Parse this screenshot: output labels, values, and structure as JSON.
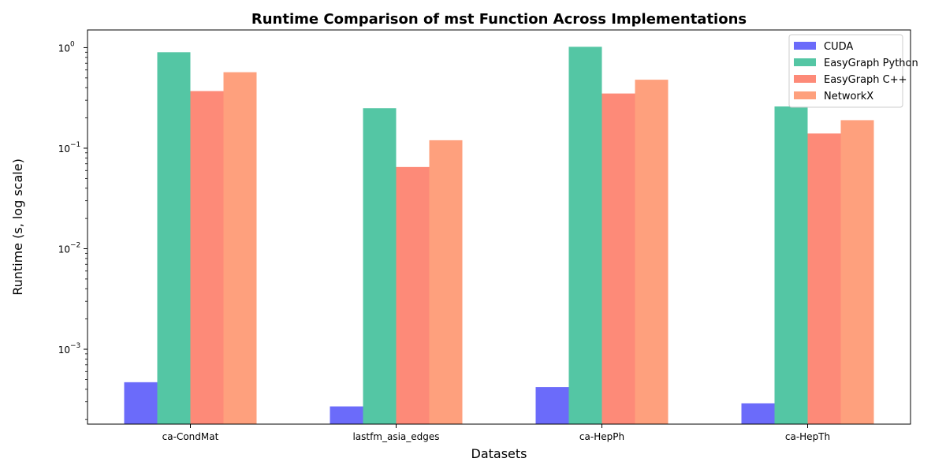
{
  "chart_data": {
    "type": "bar",
    "title": "Runtime Comparison of mst Function Across Implementations",
    "xlabel": "Datasets",
    "ylabel": "Runtime (s, log scale)",
    "yscale": "log",
    "ylim": [
      0.00018,
      1.5
    ],
    "yticks": [
      {
        "value": 0.001,
        "base": "10",
        "exp": "−3"
      },
      {
        "value": 0.01,
        "base": "10",
        "exp": "−2"
      },
      {
        "value": 0.1,
        "base": "10",
        "exp": "−1"
      },
      {
        "value": 1,
        "base": "10",
        "exp": "0"
      }
    ],
    "categories": [
      "ca-CondMat",
      "lastfm_asia_edges",
      "ca-HepPh",
      "ca-HepTh"
    ],
    "series": [
      {
        "name": "CUDA",
        "color": "#6b6bfa",
        "values": [
          0.00047,
          0.00027,
          0.00042,
          0.00029
        ]
      },
      {
        "name": "EasyGraph Python",
        "color": "#54c6a4",
        "values": [
          0.9,
          0.25,
          1.02,
          0.26
        ]
      },
      {
        "name": "EasyGraph C++",
        "color": "#fd8a78",
        "values": [
          0.37,
          0.065,
          0.35,
          0.14
        ]
      },
      {
        "name": "NetworkX",
        "color": "#fea07d",
        "values": [
          0.57,
          0.12,
          0.48,
          0.19
        ]
      }
    ],
    "legend_position": "top-right",
    "grid": false
  }
}
